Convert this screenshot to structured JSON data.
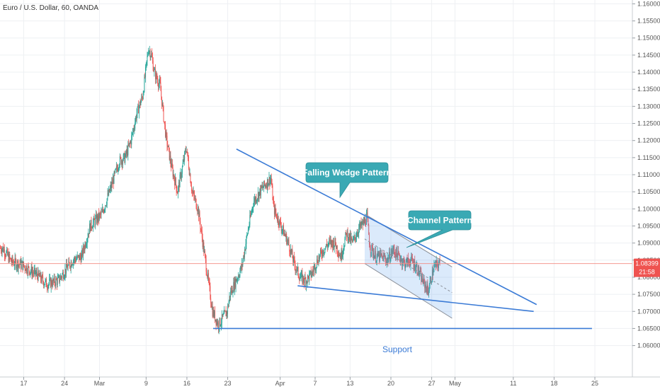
{
  "chart_data": {
    "type": "candlestick",
    "title": "Euro / U.S. Dollar, 60, OANDA",
    "y_axis": {
      "ylim": [
        1.0565,
        1.1605
      ],
      "ticks": [
        "1.16000",
        "1.15500",
        "1.15000",
        "1.14500",
        "1.14000",
        "1.13500",
        "1.13000",
        "1.12500",
        "1.12000",
        "1.11500",
        "1.11000",
        "1.10500",
        "1.10000",
        "1.09500",
        "1.09000",
        "1.08500",
        "1.08000",
        "1.07500",
        "1.07000",
        "1.06500",
        "1.06000"
      ]
    },
    "x_axis": {
      "ticks": [
        "17",
        "24",
        "Mar",
        "9",
        "16",
        "23",
        "Apr",
        "7",
        "13",
        "20",
        "27",
        "May",
        "11",
        "18",
        "25"
      ]
    },
    "price_anchors": [
      [
        "02-13 12:00",
        1.0885
      ],
      [
        "02-15 00:00",
        1.0845
      ],
      [
        "02-17 00:00",
        1.0835
      ],
      [
        "02-19 12:00",
        1.0805
      ],
      [
        "02-21 00:00",
        1.078
      ],
      [
        "02-23 00:00",
        1.079
      ],
      [
        "02-25 12:00",
        1.085
      ],
      [
        "02-27 00:00",
        1.086
      ],
      [
        "02-28 12:00",
        1.095
      ],
      [
        "03-01 12:00",
        1.0985
      ],
      [
        "03-03 00:00",
        1.106
      ],
      [
        "03-04 12:00",
        1.114
      ],
      [
        "03-05 12:00",
        1.115
      ],
      [
        "03-06 12:00",
        1.12
      ],
      [
        "03-07 12:00",
        1.128
      ],
      [
        "03-08 12:00",
        1.133
      ],
      [
        "03-09 12:00",
        1.147
      ],
      [
        "03-10 00:00",
        1.145
      ],
      [
        "03-10 12:00",
        1.14
      ],
      [
        "03-11 12:00",
        1.136
      ],
      [
        "03-12 12:00",
        1.121
      ],
      [
        "03-13 12:00",
        1.112
      ],
      [
        "03-14 12:00",
        1.105
      ],
      [
        "03-16 00:00",
        1.118
      ],
      [
        "03-17 00:00",
        1.105
      ],
      [
        "03-18 00:00",
        1.1
      ],
      [
        "03-19 12:00",
        1.082
      ],
      [
        "03-20 12:00",
        1.07
      ],
      [
        "03-21 12:00",
        1.066
      ],
      [
        "03-23 00:00",
        1.07
      ],
      [
        "03-23 12:00",
        1.075
      ],
      [
        "03-24 12:00",
        1.079
      ],
      [
        "03-25 12:00",
        1.083
      ],
      [
        "03-26 12:00",
        1.093
      ],
      [
        "03-27 12:00",
        1.102
      ],
      [
        "03-29 00:00",
        1.106
      ],
      [
        "03-30 12:00",
        1.109
      ],
      [
        "03-31 00:00",
        1.1
      ],
      [
        "04-01 00:00",
        1.096
      ],
      [
        "04-02 12:00",
        1.09
      ],
      [
        "04-03 12:00",
        1.084
      ],
      [
        "04-04 12:00",
        1.08
      ],
      [
        "04-05 12:00",
        1.079
      ],
      [
        "04-06 12:00",
        1.081
      ],
      [
        "04-07 12:00",
        1.085
      ],
      [
        "04-08 12:00",
        1.088
      ],
      [
        "04-09 12:00",
        1.09
      ],
      [
        "04-10 12:00",
        1.09
      ],
      [
        "04-11 12:00",
        1.086
      ],
      [
        "04-12 12:00",
        1.093
      ],
      [
        "04-13 12:00",
        1.09
      ],
      [
        "04-14 12:00",
        1.094
      ],
      [
        "04-15 12:00",
        1.096
      ],
      [
        "04-16 00:00",
        1.0975
      ],
      [
        "04-16 12:00",
        1.089
      ],
      [
        "04-17 12:00",
        1.086
      ],
      [
        "04-18 12:00",
        1.086
      ],
      [
        "04-19 12:00",
        1.085
      ],
      [
        "04-20 12:00",
        1.088
      ],
      [
        "04-21 12:00",
        1.086
      ],
      [
        "04-22 12:00",
        1.084
      ],
      [
        "04-23 12:00",
        1.085
      ],
      [
        "04-24 12:00",
        1.083
      ],
      [
        "04-25 12:00",
        1.079
      ],
      [
        "04-26 12:00",
        1.076
      ],
      [
        "04-27 12:00",
        1.083
      ],
      [
        "04-28 12:00",
        1.084
      ]
    ],
    "drawings": {
      "wedge_upper": [
        [
          "03-24 12:00",
          1.1175
        ],
        [
          "05-15 00:00",
          1.072
        ]
      ],
      "wedge_lower": [
        [
          "04-04 00:00",
          1.0775
        ],
        [
          "05-14 12:00",
          1.07
        ]
      ],
      "channel_upper": [
        [
          "04-15 12:00",
          1.0985
        ],
        [
          "04-30 12:00",
          1.083
        ]
      ],
      "channel_lower": [
        [
          "04-15 12:00",
          1.084
        ],
        [
          "04-30 12:00",
          1.068
        ]
      ],
      "channel_mid": [
        [
          "04-15 12:00",
          1.0912
        ],
        [
          "04-30 12:00",
          1.0755
        ]
      ],
      "support": [
        [
          "03-20 12:00",
          1.065
        ],
        [
          "05-24 12:00",
          1.065
        ]
      ],
      "current_price_line": 1.08399
    },
    "annotations": [
      {
        "text": "Falling Wedge Pattern",
        "color": "#3aa9b4"
      },
      {
        "text": "Channel Pattern",
        "color": "#3aa9b4"
      },
      {
        "text": "Support",
        "color": "#3b7bd6"
      }
    ],
    "price_label": {
      "value": "1.08399",
      "countdown": "21:58",
      "color": "#ef5350"
    },
    "colors": {
      "up": "#26a69a",
      "down": "#ef5350",
      "drawing": "#3b7bd6",
      "grid": "#eef0f3"
    },
    "grid": true
  }
}
